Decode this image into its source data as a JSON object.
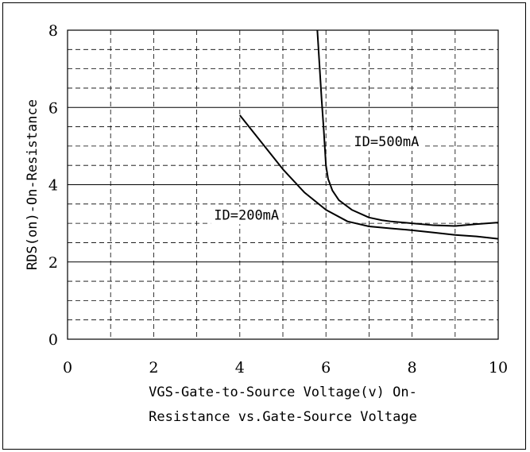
{
  "chart_data": {
    "type": "line",
    "title": "",
    "xlabel_lines": [
      "VGS-Gate-to-Source Voltage(v) On-",
      "Resistance vs.Gate-Source Voltage"
    ],
    "ylabel": "RDS(on)-On-Resistance",
    "xlim": [
      0,
      10
    ],
    "ylim": [
      0,
      8
    ],
    "x_ticks": [
      "0",
      "2",
      "4",
      "6",
      "8",
      "10"
    ],
    "y_ticks": [
      "0",
      "2",
      "4",
      "6",
      "8"
    ],
    "grid": true,
    "series": [
      {
        "name": "ID=200mA",
        "x": [
          4.0,
          4.5,
          5.0,
          5.5,
          6.0,
          6.5,
          7.0,
          7.5,
          8.0,
          8.5,
          9.0,
          9.5,
          10.0
        ],
        "y": [
          5.8,
          5.1,
          4.4,
          3.8,
          3.35,
          3.05,
          2.92,
          2.87,
          2.82,
          2.76,
          2.7,
          2.66,
          2.6
        ]
      },
      {
        "name": "ID=500mA",
        "x": [
          5.8,
          5.9,
          5.95,
          6.0,
          6.05,
          6.15,
          6.3,
          6.6,
          7.0,
          7.3,
          7.5,
          7.8,
          8.0,
          8.5,
          9.0,
          9.5,
          10.0
        ],
        "y": [
          8.0,
          6.2,
          5.4,
          4.5,
          4.15,
          3.85,
          3.6,
          3.35,
          3.15,
          3.08,
          3.05,
          3.02,
          3.0,
          2.95,
          2.93,
          2.98,
          3.02
        ]
      }
    ],
    "annotations": [
      {
        "text": "ID=500mA",
        "x": 6.65,
        "y": 5.0
      },
      {
        "text": "ID=200mA",
        "x": 3.4,
        "y": 3.1
      }
    ]
  }
}
